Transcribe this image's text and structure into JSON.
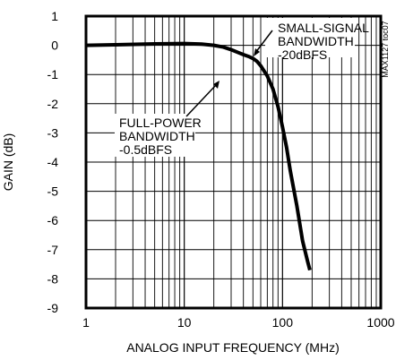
{
  "chart_data": {
    "type": "line",
    "title": "",
    "xlabel": "ANALOG INPUT FREQUENCY (MHz)",
    "ylabel": "GAIN (dB)",
    "x_scale": "log",
    "xlim": [
      1,
      1000
    ],
    "ylim": [
      -9,
      1
    ],
    "grid": true,
    "x_ticks": [
      "1",
      "10",
      "100",
      "1000"
    ],
    "y_ticks": [
      "1",
      "0",
      "-1",
      "-2",
      "-3",
      "-4",
      "-5",
      "-6",
      "-7",
      "-8",
      "-9"
    ],
    "series": [
      {
        "x": [
          1,
          2,
          5,
          10,
          15,
          20,
          25,
          30,
          35,
          40,
          45,
          50,
          55,
          60,
          70,
          80,
          90,
          100,
          110,
          120,
          140,
          160,
          180,
          190
        ],
        "y": [
          0,
          0.02,
          0.05,
          0.06,
          0.04,
          0,
          -0.06,
          -0.15,
          -0.24,
          -0.32,
          -0.38,
          -0.45,
          -0.55,
          -0.7,
          -1.05,
          -1.5,
          -2.1,
          -2.8,
          -3.5,
          -4.3,
          -5.5,
          -6.7,
          -7.4,
          -7.7
        ]
      }
    ],
    "annotations": [
      {
        "lines": [
          "SMALL-SIGNAL",
          "BANDWIDTH",
          "-20dBFS"
        ],
        "target": [
          57,
          -0.5
        ]
      },
      {
        "lines": [
          "FULL-POWER",
          "BANDWIDTH",
          "-0.5dBFS"
        ],
        "target": [
          42,
          -0.35
        ]
      }
    ],
    "figure_id": "MAX1127 toc07"
  }
}
